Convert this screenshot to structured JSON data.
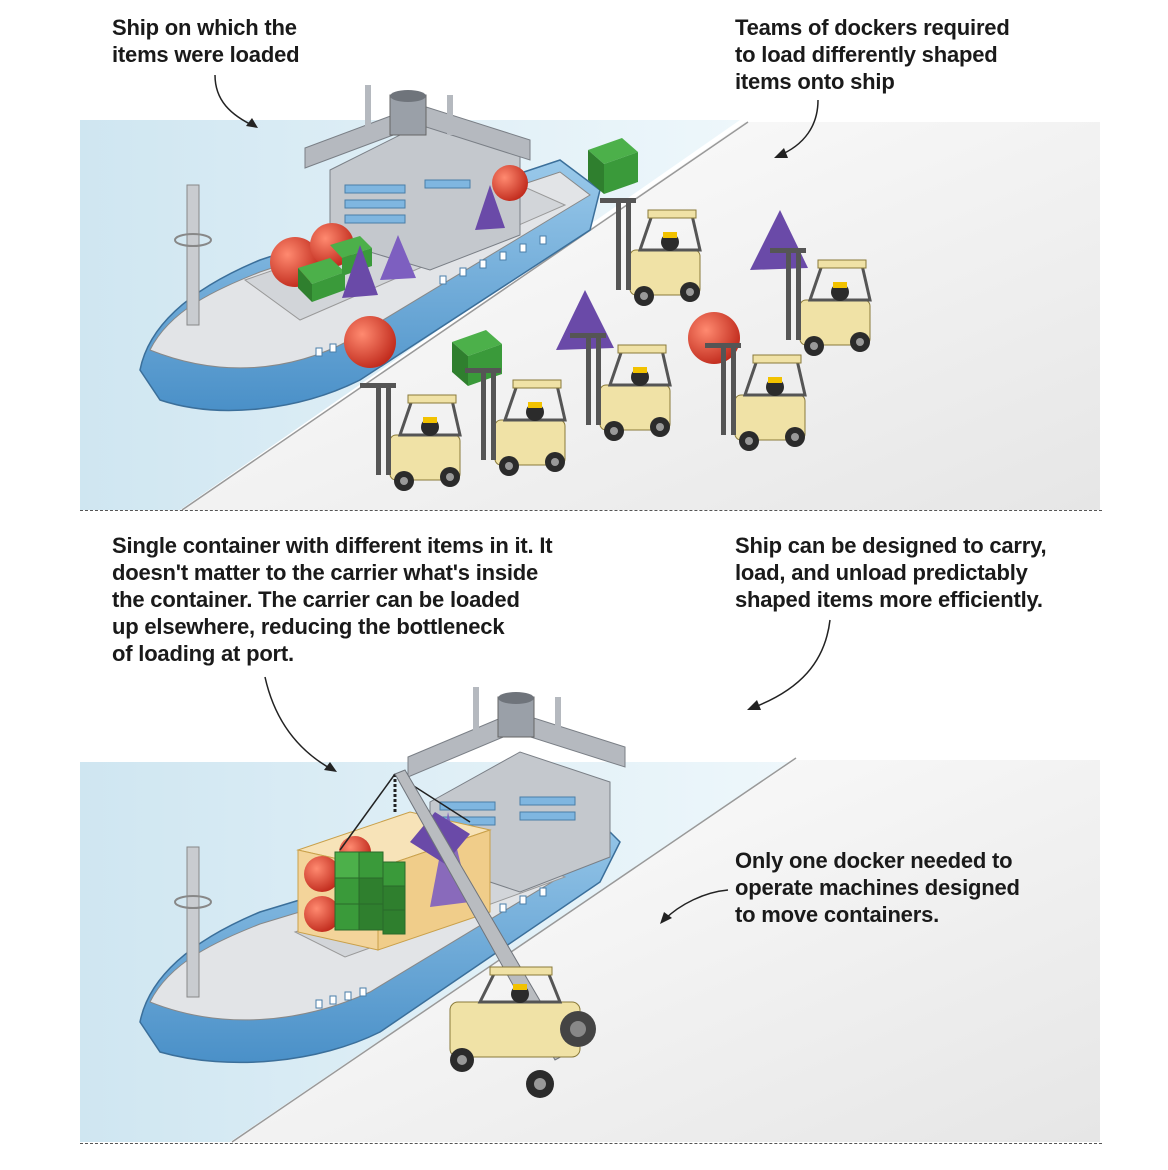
{
  "top_panel": {
    "callout_ship": "Ship on which the\nitems were loaded",
    "callout_dockers": "Teams of dockers required\nto load differently shaped\nitems onto ship"
  },
  "bottom_panel": {
    "callout_container": "Single container with different items in it. It\ndoesn't matter to the carrier what's inside\nthe container. The carrier can be loaded\nup elsewhere, reducing the bottleneck\nof loading at port.",
    "callout_ship_design": "Ship can be designed to carry,\nload, and unload predictably\nshaped items more efficiently.",
    "callout_one_docker": "Only one docker needed to\noperate machines designed\nto move containers."
  },
  "colors": {
    "water": "#dceef6",
    "hull": "#5aa3d6",
    "deck": "#c9ccd0",
    "forklift": "#f0e2a6",
    "crate_green": "#3a9a3a",
    "ball_red": "#d93a2a",
    "prism_purple": "#6a4aa8",
    "container_orange": "#f3d49a"
  }
}
